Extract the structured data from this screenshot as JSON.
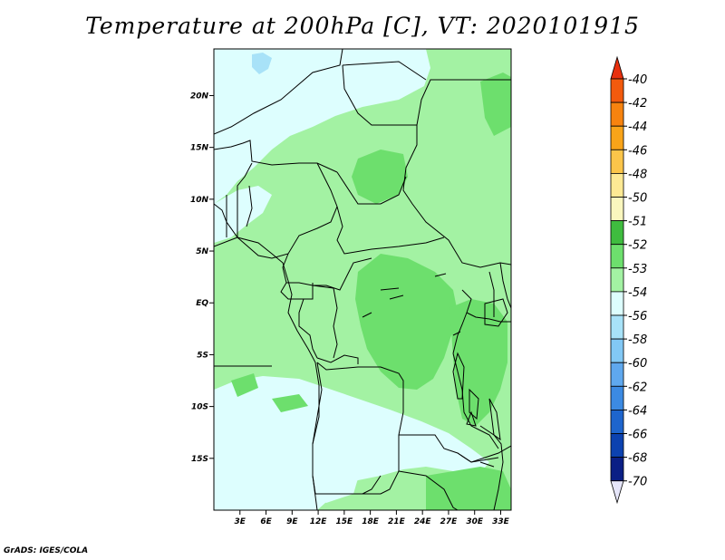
{
  "title": "Temperature at 200hPa [C], VT: 2020101915",
  "footer": "GrADS: IGES/COLA",
  "map": {
    "lat_labels": [
      "20N",
      "15N",
      "10N",
      "5N",
      "EQ",
      "5S",
      "10S",
      "15S"
    ],
    "lat_values": [
      20,
      15,
      10,
      5,
      0,
      -5,
      -10,
      -15
    ],
    "lon_labels": [
      "3E",
      "6E",
      "9E",
      "12E",
      "15E",
      "18E",
      "21E",
      "24E",
      "27E",
      "30E",
      "33E"
    ],
    "lon_values": [
      3,
      6,
      9,
      12,
      15,
      18,
      21,
      24,
      27,
      30,
      33
    ],
    "lat_range": [
      -20,
      24.5
    ],
    "lon_range": [
      0,
      34.2
    ]
  },
  "colorbar": {
    "labels": [
      "-40",
      "-42",
      "-44",
      "-46",
      "-48",
      "-50",
      "-51",
      "-52",
      "-53",
      "-54",
      "-56",
      "-58",
      "-60",
      "-62",
      "-64",
      "-66",
      "-68",
      "-70"
    ],
    "colors": [
      "#e8300e",
      "#f25a0d",
      "#f7830f",
      "#f9a419",
      "#fbc54a",
      "#fde994",
      "#faf7be",
      "#3fbc3f",
      "#6ddf6d",
      "#a3f2a3",
      "#ddfefe",
      "#a8e2f8",
      "#82c8f5",
      "#5fa8ee",
      "#3c8ae2",
      "#1e65cd",
      "#0c42b0",
      "#0a1f85",
      "#091060",
      "#e6e6fa"
    ],
    "top_color": "#e8300e",
    "bottom_color": "#e6e6fa"
  }
}
